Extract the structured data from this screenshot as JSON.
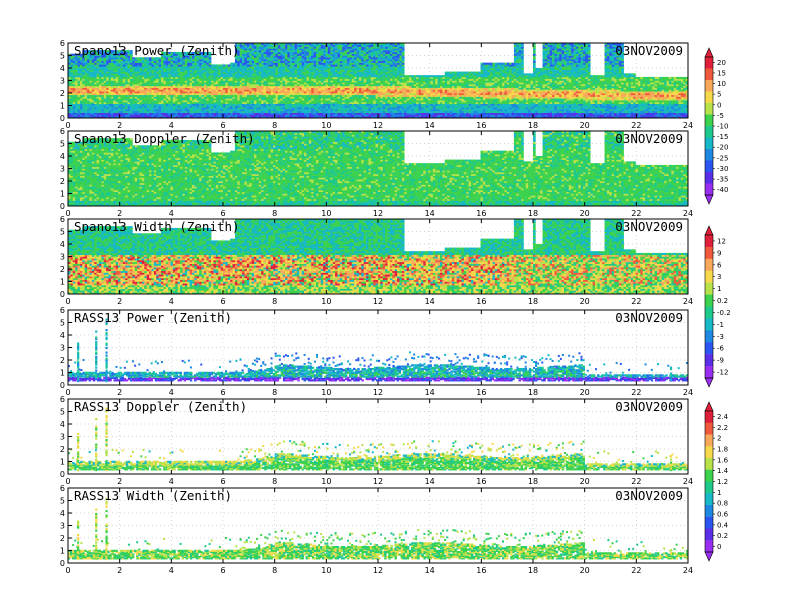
{
  "chart_data": [
    {
      "type": "heatmap",
      "title": "Spano13 Power (Zenith)",
      "date": "03NOV2009",
      "xlim": [
        0,
        24
      ],
      "ylim": [
        0,
        6
      ],
      "xticks": [
        "0",
        "2",
        "4",
        "6",
        "8",
        "10",
        "12",
        "14",
        "16",
        "18",
        "20",
        "22",
        "24"
      ],
      "yticks": [
        "0",
        "1",
        "2",
        "3",
        "4",
        "5",
        "6"
      ],
      "colorbar": "power"
    },
    {
      "type": "heatmap",
      "title": "Spano13 Doppler (Zenith)",
      "date": "03NOV2009",
      "xlim": [
        0,
        24
      ],
      "ylim": [
        0,
        6
      ],
      "xticks": [
        "0",
        "2",
        "4",
        "6",
        "8",
        "10",
        "12",
        "14",
        "16",
        "18",
        "20",
        "22",
        "24"
      ],
      "yticks": [
        "0",
        "1",
        "2",
        "3",
        "4",
        "5",
        "6"
      ]
    },
    {
      "type": "heatmap",
      "title": "Spano13 Width (Zenith)",
      "date": "03NOV2009",
      "xlim": [
        0,
        24
      ],
      "ylim": [
        0,
        6
      ],
      "xticks": [
        "0",
        "2",
        "4",
        "6",
        "8",
        "10",
        "12",
        "14",
        "16",
        "18",
        "20",
        "22",
        "24"
      ],
      "yticks": [
        "0",
        "1",
        "2",
        "3",
        "4",
        "5",
        "6"
      ],
      "colorbar": "doppler"
    },
    {
      "type": "heatmap",
      "title": "RASS13 Power (Zenith)",
      "date": "03NOV2009",
      "xlim": [
        0,
        24
      ],
      "ylim": [
        0,
        6
      ],
      "xticks": [
        "0",
        "2",
        "4",
        "6",
        "8",
        "10",
        "12",
        "14",
        "16",
        "18",
        "20",
        "22",
        "24"
      ],
      "yticks": [
        "0",
        "1",
        "2",
        "3",
        "4",
        "5",
        "6"
      ]
    },
    {
      "type": "heatmap",
      "title": "RASS13 Doppler (Zenith)",
      "date": "03NOV2009",
      "xlim": [
        0,
        24
      ],
      "ylim": [
        0,
        6
      ],
      "xticks": [
        "0",
        "2",
        "4",
        "6",
        "8",
        "10",
        "12",
        "14",
        "16",
        "18",
        "20",
        "22",
        "24"
      ],
      "yticks": [
        "0",
        "1",
        "2",
        "3",
        "4",
        "5",
        "6"
      ],
      "colorbar": "width"
    },
    {
      "type": "heatmap",
      "title": "RASS13 Width (Zenith)",
      "date": "03NOV2009",
      "xlim": [
        0,
        24
      ],
      "ylim": [
        0,
        6
      ],
      "xticks": [
        "0",
        "2",
        "4",
        "6",
        "8",
        "10",
        "12",
        "14",
        "16",
        "18",
        "20",
        "22",
        "24"
      ],
      "yticks": [
        "0",
        "1",
        "2",
        "3",
        "4",
        "5",
        "6"
      ]
    }
  ],
  "colorbars": {
    "power": {
      "labels": [
        "20",
        "15",
        "10",
        "5",
        "0",
        "-5",
        "-10",
        "-15",
        "-20",
        "-25",
        "-30",
        "-35",
        "-40"
      ],
      "colors": [
        "#e0203a",
        "#f05a3c",
        "#f7a85a",
        "#f5d94a",
        "#b8e24a",
        "#3dd24e",
        "#1fc98c",
        "#17b8c8",
        "#1f88e0",
        "#2a55f0",
        "#5b2ee8",
        "#9a2ef0"
      ]
    },
    "doppler": {
      "labels": [
        "12",
        "9",
        "6",
        "3",
        "1",
        "0.2",
        "-0.2",
        "-1",
        "-3",
        "-6",
        "-9",
        "-12"
      ],
      "colors": [
        "#e0203a",
        "#f05a3c",
        "#f7a85a",
        "#f5d94a",
        "#b8e24a",
        "#3dd24e",
        "#1fc98c",
        "#17b8c8",
        "#1f88e0",
        "#2a55f0",
        "#5b2ee8",
        "#9a2ef0"
      ]
    },
    "width": {
      "labels": [
        "2.4",
        "2.2",
        "2",
        "1.8",
        "1.6",
        "1.4",
        "1.2",
        "1",
        "0.8",
        "0.6",
        "0.4",
        "0.2",
        "0"
      ],
      "colors": [
        "#e0203a",
        "#f05a3c",
        "#f7a85a",
        "#f5d94a",
        "#b8e24a",
        "#3dd24e",
        "#1fc98c",
        "#17b8c8",
        "#1f88e0",
        "#2a55f0",
        "#5b2ee8",
        "#9a2ef0"
      ]
    }
  }
}
